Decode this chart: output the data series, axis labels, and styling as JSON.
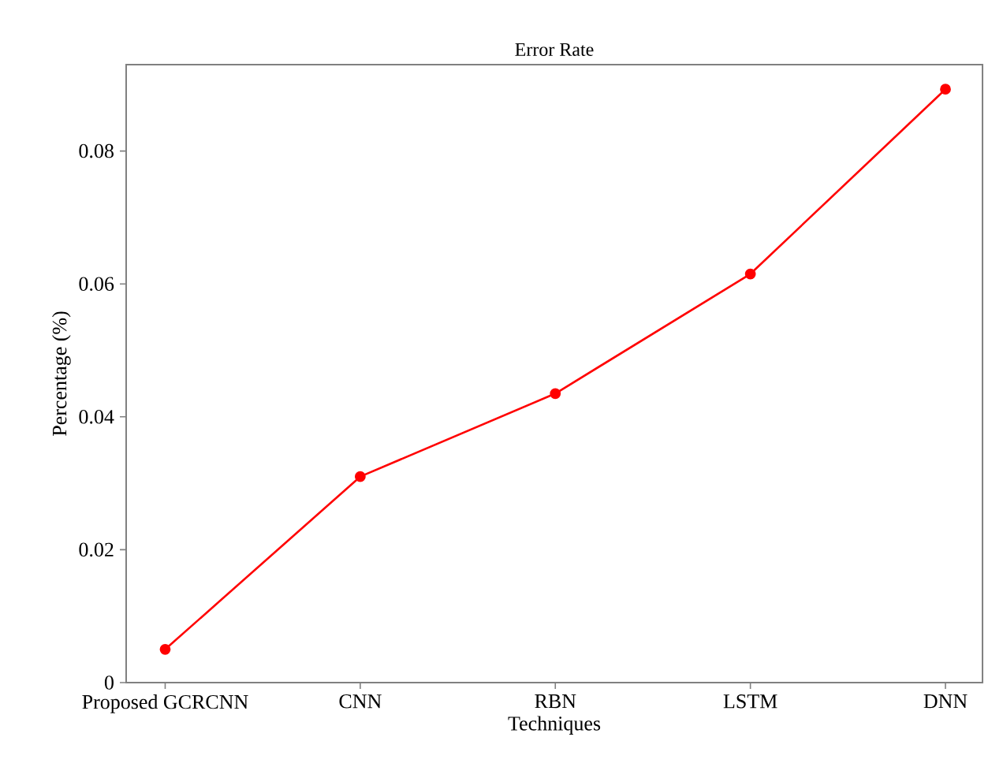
{
  "chart_data": {
    "type": "line",
    "title": "Error Rate",
    "xlabel": "Techniques",
    "ylabel": "Percentage (%)",
    "categories": [
      "Proposed GCRCNN",
      "CNN",
      "RBN",
      "LSTM",
      "DNN"
    ],
    "series": [
      {
        "color": "#ff0000",
        "values": [
          0.005,
          0.031,
          0.0435,
          0.0615,
          0.0893
        ]
      }
    ],
    "ylim": [
      0,
      0.093
    ],
    "yticks": [
      0,
      0.02,
      0.04,
      0.06,
      0.08
    ],
    "grid": false,
    "marker": "circle",
    "line_style": "solid"
  }
}
